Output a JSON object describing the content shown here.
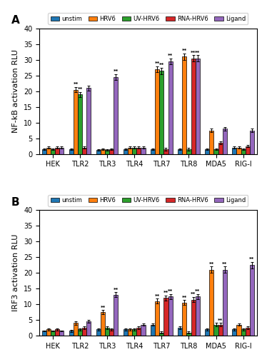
{
  "chart_data": [
    {
      "type": "bar",
      "title": "A",
      "ylabel": "NF-kB activation RLU",
      "categories": [
        "HEK",
        "TLR2",
        "TLR3",
        "TLR4",
        "TLR7",
        "TLR8",
        "MDA5",
        "RIG-I"
      ],
      "series": [
        {
          "name": "unstim",
          "values": [
            1.5,
            1.5,
            1.2,
            1.5,
            1.5,
            1.5,
            1.5,
            2.0
          ],
          "errors": [
            0.2,
            0.3,
            0.2,
            0.3,
            0.3,
            0.3,
            0.3,
            0.3
          ]
        },
        {
          "name": "HRV6",
          "values": [
            2.0,
            20.5,
            1.5,
            2.0,
            27.0,
            31.0,
            7.5,
            2.0
          ],
          "errors": [
            0.3,
            0.8,
            0.3,
            0.4,
            1.0,
            1.0,
            0.5,
            0.4
          ]
        },
        {
          "name": "UV-HRV6",
          "values": [
            1.5,
            19.0,
            1.2,
            2.0,
            26.5,
            1.5,
            1.5,
            1.5
          ],
          "errors": [
            0.2,
            0.8,
            0.2,
            0.4,
            1.0,
            0.4,
            0.3,
            0.3
          ]
        },
        {
          "name": "RNA-HRV6",
          "values": [
            2.0,
            2.0,
            1.5,
            2.0,
            1.5,
            30.5,
            3.5,
            2.5
          ],
          "errors": [
            0.3,
            0.4,
            0.3,
            0.3,
            0.4,
            1.0,
            0.5,
            0.4
          ]
        },
        {
          "name": "Ligand",
          "values": [
            2.0,
            21.0,
            24.5,
            2.0,
            29.5,
            30.5,
            8.0,
            7.5
          ],
          "errors": [
            0.3,
            0.8,
            1.0,
            0.3,
            1.0,
            1.0,
            0.5,
            0.5
          ]
        }
      ],
      "ylim": [
        0,
        40
      ],
      "yticks": [
        0,
        5,
        10,
        15,
        20,
        25,
        30,
        35,
        40
      ],
      "legend": "upper center",
      "annotations": [
        {
          "text": "**",
          "series": "HRV6",
          "category": "TLR2"
        },
        {
          "text": "**",
          "series": "HRV6",
          "category": "TLR7"
        },
        {
          "text": "**",
          "series": "HRV6",
          "category": "TLR8"
        },
        {
          "text": "**",
          "series": "UV-HRV6",
          "category": "TLR2"
        },
        {
          "text": "**",
          "series": "UV-HRV6",
          "category": "TLR7"
        },
        {
          "text": "**",
          "series": "RNA-HRV6",
          "category": "TLR8"
        },
        {
          "text": "**",
          "series": "Ligand",
          "category": "TLR3"
        },
        {
          "text": "**",
          "series": "Ligand",
          "category": "TLR7"
        },
        {
          "text": "**",
          "series": "Ligand",
          "category": "TLR8"
        }
      ]
    },
    {
      "type": "bar",
      "title": "B",
      "ylabel": "IRF3 activation RLU",
      "categories": [
        "HEK",
        "TLR2",
        "TLR3",
        "TLR4",
        "TLR7",
        "TLR8",
        "MDA5",
        "RIG-I"
      ],
      "series": [
        {
          "name": "unstim",
          "values": [
            1.5,
            1.5,
            2.0,
            2.0,
            3.5,
            2.5,
            2.0,
            2.0
          ],
          "errors": [
            0.2,
            0.3,
            0.3,
            0.3,
            0.4,
            0.4,
            0.3,
            0.3
          ]
        },
        {
          "name": "HRV6",
          "values": [
            2.0,
            4.0,
            7.5,
            2.0,
            11.0,
            10.5,
            21.0,
            3.5
          ],
          "errors": [
            0.3,
            0.5,
            0.6,
            0.3,
            0.8,
            0.8,
            1.0,
            0.4
          ]
        },
        {
          "name": "UV-HRV6",
          "values": [
            1.5,
            2.0,
            2.5,
            2.0,
            1.0,
            1.0,
            3.5,
            2.0
          ],
          "errors": [
            0.2,
            0.3,
            0.4,
            0.3,
            0.3,
            0.3,
            0.5,
            0.3
          ]
        },
        {
          "name": "RNA-HRV6",
          "values": [
            2.0,
            2.5,
            2.0,
            2.5,
            12.0,
            11.5,
            3.5,
            2.5
          ],
          "errors": [
            0.3,
            0.4,
            0.3,
            0.4,
            0.8,
            0.8,
            0.5,
            0.4
          ]
        },
        {
          "name": "Ligand",
          "values": [
            1.5,
            4.5,
            13.0,
            3.5,
            12.5,
            12.5,
            21.0,
            22.5
          ],
          "errors": [
            0.2,
            0.5,
            0.8,
            0.4,
            0.8,
            0.8,
            1.0,
            1.0
          ]
        }
      ],
      "ylim": [
        0,
        40
      ],
      "yticks": [
        0,
        5,
        10,
        15,
        20,
        25,
        30,
        35,
        40
      ],
      "legend": "upper center",
      "annotations": [
        {
          "text": "**",
          "series": "HRV6",
          "category": "TLR3"
        },
        {
          "text": "**",
          "series": "HRV6",
          "category": "TLR7"
        },
        {
          "text": "**",
          "series": "HRV6",
          "category": "TLR8"
        },
        {
          "text": "**",
          "series": "HRV6",
          "category": "MDA5"
        },
        {
          "text": "**",
          "series": "RNA-HRV6",
          "category": "TLR7"
        },
        {
          "text": "**",
          "series": "RNA-HRV6",
          "category": "TLR8"
        },
        {
          "text": "**",
          "series": "RNA-HRV6",
          "category": "MDA5"
        },
        {
          "text": "**",
          "series": "Ligand",
          "category": "TLR3"
        },
        {
          "text": "**",
          "series": "Ligand",
          "category": "TLR7"
        },
        {
          "text": "**",
          "series": "Ligand",
          "category": "TLR8"
        },
        {
          "text": "**",
          "series": "Ligand",
          "category": "MDA5"
        },
        {
          "text": "**",
          "series": "Ligand",
          "category": "RIG-I"
        }
      ]
    }
  ]
}
